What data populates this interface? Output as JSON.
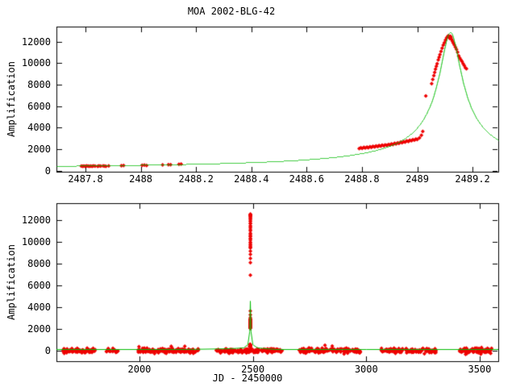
{
  "title": "MOA 2002-BLG-42",
  "colors": {
    "data_points": "#ee0000",
    "model_curve": "#00bb00",
    "axes": "#000000",
    "background": "#ffffff"
  },
  "chart_data": [
    {
      "id": "event-zoom-panel",
      "type": "scatter",
      "title": "MOA 2002-BLG-42",
      "xlabel": "",
      "ylabel": "Amplification",
      "xlim": [
        2487.695,
        2489.293
      ],
      "ylim": [
        -100,
        13400
      ],
      "xticks": [
        2487.8,
        2488,
        2488.2,
        2488.4,
        2488.6,
        2488.8,
        2489,
        2489.2
      ],
      "xtick_labels": [
        "2487.8",
        "2488",
        "2488.2",
        "2488.4",
        "2488.6",
        "2488.8",
        "2489",
        "2489.2"
      ],
      "yticks": [
        0,
        2000,
        4000,
        6000,
        8000,
        10000,
        12000
      ],
      "ytick_labels": [
        "0",
        "2000",
        "4000",
        "6000",
        "8000",
        "10000",
        "12000"
      ],
      "grid": false,
      "legend": "none",
      "series": [
        {
          "name": "moa-photometry",
          "type": "scatter",
          "points": [
            [
              2487.785,
              420
            ],
            [
              2487.79,
              398
            ],
            [
              2487.794,
              432
            ],
            [
              2487.799,
              410
            ],
            [
              2487.804,
              445
            ],
            [
              2487.809,
              418
            ],
            [
              2487.814,
              400
            ],
            [
              2487.819,
              430
            ],
            [
              2487.824,
              412
            ],
            [
              2487.829,
              442
            ],
            [
              2487.835,
              424
            ],
            [
              2487.844,
              408
            ],
            [
              2487.849,
              436
            ],
            [
              2487.855,
              420
            ],
            [
              2487.864,
              446
            ],
            [
              2487.869,
              428
            ],
            [
              2487.874,
              414
            ],
            [
              2487.884,
              438
            ],
            [
              2487.93,
              455
            ],
            [
              2487.938,
              472
            ],
            [
              2488.005,
              495
            ],
            [
              2488.013,
              515
            ],
            [
              2488.021,
              488
            ],
            [
              2488.079,
              530
            ],
            [
              2488.1,
              548
            ],
            [
              2488.108,
              560
            ],
            [
              2488.138,
              585
            ],
            [
              2488.146,
              605
            ],
            [
              2488.79,
              2060
            ],
            [
              2488.796,
              2130
            ],
            [
              2488.801,
              2080
            ],
            [
              2488.807,
              2160
            ],
            [
              2488.812,
              2110
            ],
            [
              2488.818,
              2190
            ],
            [
              2488.823,
              2140
            ],
            [
              2488.829,
              2230
            ],
            [
              2488.834,
              2170
            ],
            [
              2488.84,
              2260
            ],
            [
              2488.846,
              2210
            ],
            [
              2488.851,
              2300
            ],
            [
              2488.857,
              2240
            ],
            [
              2488.862,
              2330
            ],
            [
              2488.868,
              2280
            ],
            [
              2488.873,
              2370
            ],
            [
              2488.879,
              2310
            ],
            [
              2488.884,
              2400
            ],
            [
              2488.89,
              2350
            ],
            [
              2488.896,
              2440
            ],
            [
              2488.901,
              2390
            ],
            [
              2488.907,
              2490
            ],
            [
              2488.912,
              2430
            ],
            [
              2488.918,
              2540
            ],
            [
              2488.923,
              2480
            ],
            [
              2488.929,
              2590
            ],
            [
              2488.934,
              2540
            ],
            [
              2488.94,
              2650
            ],
            [
              2488.945,
              2600
            ],
            [
              2488.951,
              2700
            ],
            [
              2488.956,
              2660
            ],
            [
              2488.962,
              2760
            ],
            [
              2488.968,
              2720
            ],
            [
              2488.973,
              2820
            ],
            [
              2488.979,
              2780
            ],
            [
              2488.984,
              2880
            ],
            [
              2488.99,
              2840
            ],
            [
              2488.995,
              2930
            ],
            [
              2489.0,
              2900
            ],
            [
              2489.008,
              3050
            ],
            [
              2489.015,
              3300
            ],
            [
              2489.02,
              3650
            ],
            [
              2489.031,
              6950
            ],
            [
              2489.052,
              8100
            ],
            [
              2489.056,
              8480
            ],
            [
              2489.06,
              8850
            ],
            [
              2489.063,
              9150
            ],
            [
              2489.066,
              9450
            ],
            [
              2489.069,
              9700
            ],
            [
              2489.072,
              9950
            ],
            [
              2489.076,
              10300
            ],
            [
              2489.079,
              10550
            ],
            [
              2489.082,
              10800
            ],
            [
              2489.086,
              11100
            ],
            [
              2489.09,
              11400
            ],
            [
              2489.094,
              11680
            ],
            [
              2489.098,
              11900
            ],
            [
              2489.102,
              12150
            ],
            [
              2489.106,
              12350
            ],
            [
              2489.11,
              12480
            ],
            [
              2489.113,
              12550
            ],
            [
              2489.116,
              12420
            ],
            [
              2489.118,
              12300
            ],
            [
              2489.12,
              12500
            ],
            [
              2489.122,
              12380
            ],
            [
              2489.125,
              12200
            ],
            [
              2489.127,
              12050
            ],
            [
              2489.13,
              11880
            ],
            [
              2489.134,
              11700
            ],
            [
              2489.138,
              11480
            ],
            [
              2489.142,
              11280
            ],
            [
              2489.146,
              11020
            ],
            [
              2489.15,
              10680
            ],
            [
              2489.154,
              10480
            ],
            [
              2489.158,
              10300
            ],
            [
              2489.162,
              10150
            ],
            [
              2489.166,
              9950
            ],
            [
              2489.17,
              9780
            ],
            [
              2489.174,
              9580
            ],
            [
              2489.178,
              9480
            ]
          ]
        },
        {
          "name": "microlensing-model",
          "type": "line-function",
          "model": {
            "base": 100,
            "K": 491,
            "t0": 2489.119,
            "w2": 0.001475,
            "peak_value": 12880
          }
        }
      ]
    },
    {
      "id": "full-lightcurve-panel",
      "type": "scatter",
      "title": "",
      "xlabel": "JD - 2450000",
      "ylabel": "Amplification",
      "xlim": [
        1634,
        3582
      ],
      "ylim": [
        -950,
        13550
      ],
      "xticks": [
        2000,
        2500,
        3000,
        3500
      ],
      "xtick_labels": [
        "2000",
        "2500",
        "3000",
        "3500"
      ],
      "yticks": [
        0,
        2000,
        4000,
        6000,
        8000,
        10000,
        12000
      ],
      "ytick_labels": [
        "0",
        "2000",
        "4000",
        "6000",
        "8000",
        "10000",
        "12000"
      ],
      "grid": false,
      "legend": "none",
      "series": [
        {
          "name": "baseline-photometry",
          "type": "scatter-clusters",
          "noise": {
            "mean": 15,
            "sd": 105,
            "clip_low": -330,
            "clip_high": 420,
            "seed": 42
          },
          "clusters": [
            [
              1663,
              1806,
              85
            ],
            [
              1853,
              1906,
              18
            ],
            [
              1990,
              2262,
              150
            ],
            [
              2339,
              2629,
              160
            ],
            [
              2704,
              2974,
              140
            ],
            [
              3066,
              3312,
              120
            ],
            [
              3411,
              3553,
              85
            ]
          ],
          "outliers": [
            [
              1998,
              380
            ],
            [
              2140,
              420
            ],
            [
              2818,
              520
            ],
            [
              2850,
              430
            ],
            [
              3438,
              -320
            ],
            [
              3505,
              -300
            ]
          ]
        },
        {
          "name": "event-photometry",
          "type": "scatter-ref",
          "ref_panel": 0,
          "ref_series": 0
        },
        {
          "name": "microlensing-model",
          "type": "line-points",
          "points": [
            [
              1634,
              140
            ],
            [
              2200,
              165
            ],
            [
              2400,
              200
            ],
            [
              2460,
              300
            ],
            [
              2478,
              600
            ],
            [
              2486,
              1800
            ],
            [
              2489,
              4600
            ],
            [
              2492,
              1800
            ],
            [
              2500,
              600
            ],
            [
              2520,
              300
            ],
            [
              2600,
              190
            ],
            [
              3000,
              155
            ],
            [
              3582,
              135
            ]
          ]
        }
      ]
    }
  ]
}
